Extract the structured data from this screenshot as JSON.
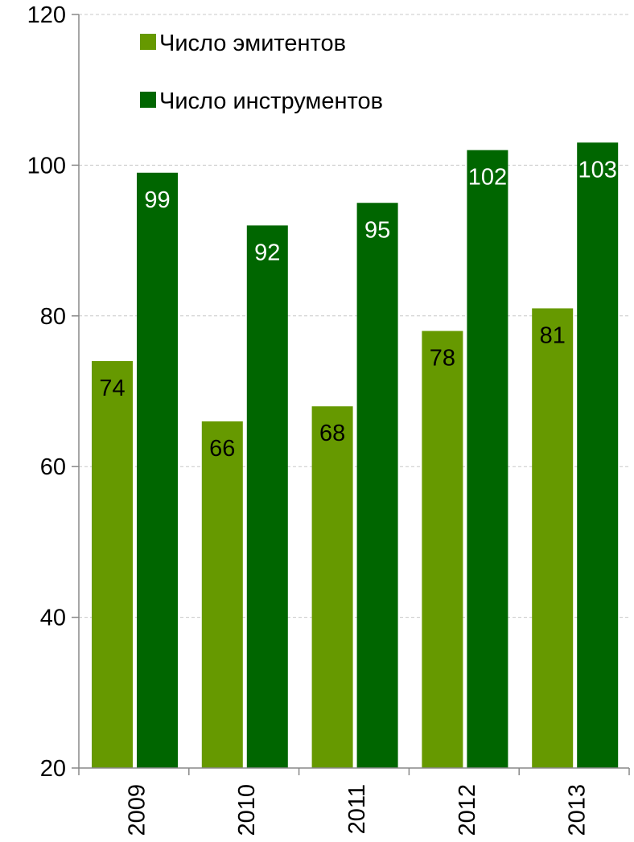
{
  "chart_data": {
    "type": "bar",
    "categories": [
      "2009",
      "2010",
      "2011",
      "2012",
      "2013"
    ],
    "series": [
      {
        "name": "Число эмитентов",
        "values": [
          74,
          66,
          68,
          78,
          81
        ],
        "color": "#669900",
        "label_color": "#000000"
      },
      {
        "name": "Число инструментов",
        "values": [
          99,
          92,
          95,
          102,
          103
        ],
        "color": "#006600",
        "label_color": "#ffffff"
      }
    ],
    "ylim": [
      20,
      120
    ],
    "yticks": [
      20,
      40,
      60,
      80,
      100,
      120
    ],
    "title": "",
    "xlabel": "",
    "ylabel": "",
    "grid": "horizontal-dashed",
    "legend_position": "top-left"
  }
}
